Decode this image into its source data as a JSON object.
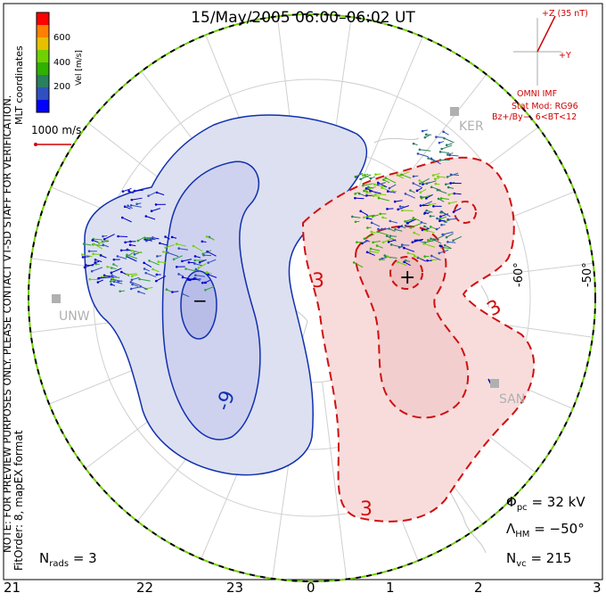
{
  "title": "15/May/2005 06:00–06:02 UT",
  "colorbar": {
    "ticks": [
      "600",
      "400",
      "200"
    ],
    "label": "Vel [m/s]",
    "colors": [
      "#ff0000",
      "#ff8000",
      "#e6c000",
      "#70d000",
      "#30b000",
      "#2a7f60",
      "#3050c0",
      "#0000ff"
    ]
  },
  "coordinates_label": "MLT coordinates",
  "reference_vector": "1000 m/s",
  "note_text": "NOTE: FOR PREVIEW PURPOSES ONLY. PLEASE CONTACT VT-SD STAFF FOR VERIFICATION.",
  "fitorder_text": "FitOrder: 8, mapEX format",
  "imf": {
    "z_label": "+Z (35 nT)",
    "y_label": "+Y",
    "source": "OMNI IMF",
    "stat_mod": "Stat Mod: RG96",
    "condition": "Bz+/By−, 6<BT<12"
  },
  "stations": [
    "KER",
    "UNW",
    "SAN"
  ],
  "latitude_labels": [
    "-60°",
    "-50°"
  ],
  "contour_labels": {
    "negative": "-9",
    "positive_a": "3",
    "positive_b": "3",
    "positive_c": "3"
  },
  "extrema": {
    "min_marker": "−",
    "max_marker": "+"
  },
  "stats": {
    "phi_label": "Φ",
    "phi_sub": "pc",
    "phi_value": "= 32 kV",
    "lambda_label": "Λ",
    "lambda_sub": "HM",
    "lambda_value": "= −50°",
    "nvc_label": "N",
    "nvc_sub": "vc",
    "nvc_value": "= 215",
    "nrads_label": "N",
    "nrads_sub": "rads",
    "nrads_value": "= 3"
  },
  "mlt_axis": [
    "21",
    "22",
    "23",
    "0",
    "1",
    "2",
    "3"
  ],
  "colors": {
    "negative_cell": "#1030b0",
    "positive_cell": "#d01010",
    "imf_vector": "#d00000"
  }
}
